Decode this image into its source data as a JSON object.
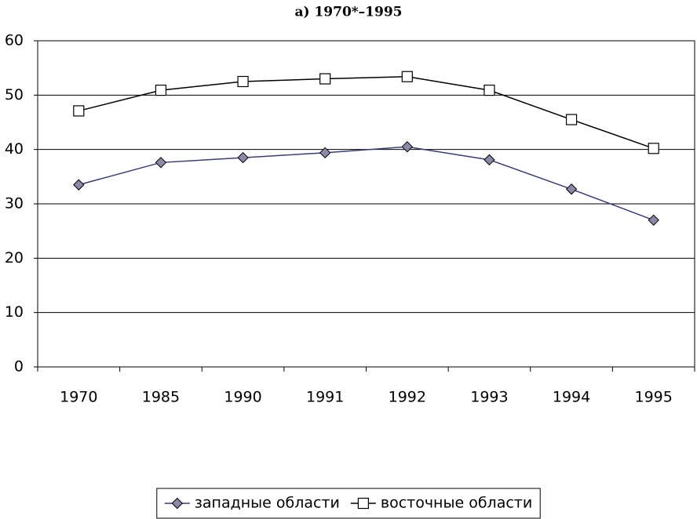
{
  "chart_data": {
    "type": "line",
    "title": "а) 1970*–1995",
    "categories": [
      "1970",
      "1985",
      "1990",
      "1991",
      "1992",
      "1993",
      "1994",
      "1995"
    ],
    "series": [
      {
        "name": "западные области",
        "color": "#3c3c78",
        "marker": "diamond",
        "values": [
          33.5,
          37.6,
          38.5,
          39.4,
          40.5,
          38.1,
          32.7,
          27.0
        ]
      },
      {
        "name": "восточные области",
        "color": "#000000",
        "marker": "square",
        "values": [
          47.1,
          50.9,
          52.5,
          53.0,
          53.4,
          50.9,
          45.5,
          40.2
        ]
      }
    ],
    "ylim": [
      0,
      60
    ],
    "yticks": [
      0,
      10,
      20,
      30,
      40,
      50,
      60
    ],
    "grid": true,
    "legend": "bottom"
  }
}
